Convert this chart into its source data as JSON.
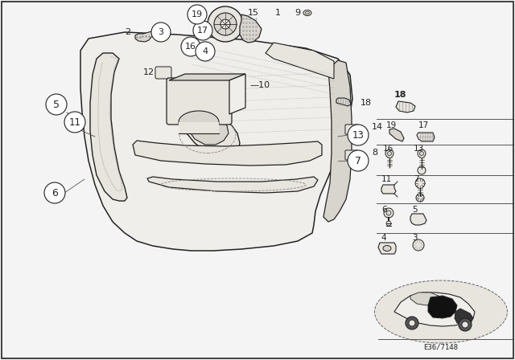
{
  "bg_color": "#f4f4f4",
  "border_color": "#000000",
  "part_number_text": "E36/7148",
  "figsize": [
    6.4,
    4.48
  ],
  "dpi": 100,
  "lc": "#222222",
  "fc_door": "#f0eeea",
  "fc_inner": "#e8e4de",
  "fc_white": "#ffffff",
  "fc_gray": "#d8d4ce"
}
